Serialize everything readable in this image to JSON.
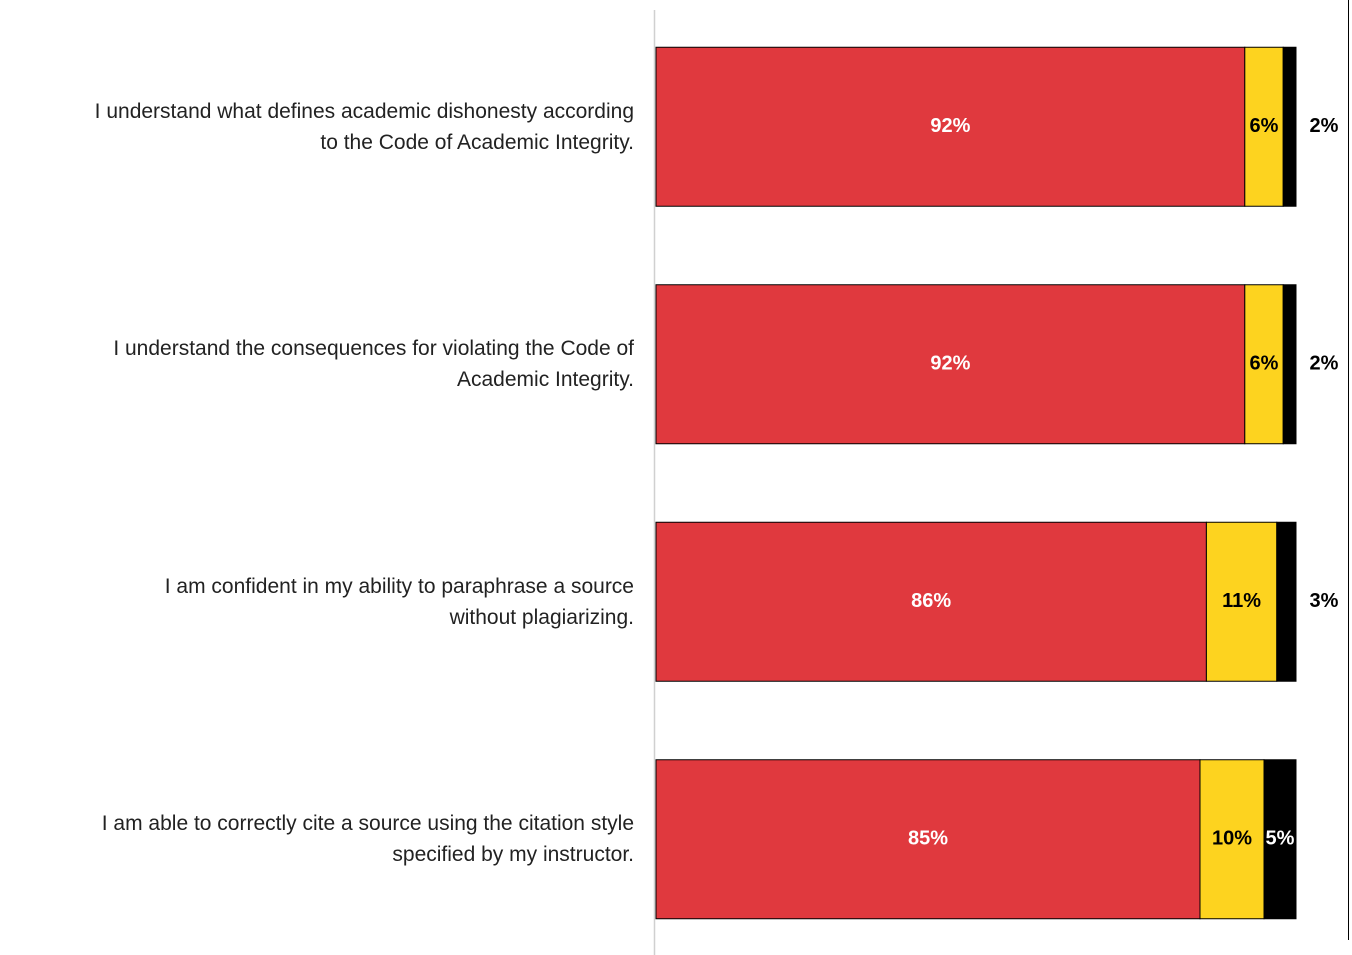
{
  "chart_data": {
    "type": "stacked_barh",
    "categories": [
      "I understand what defines academic dishonesty according\nto the Code of Academic Integrity.",
      "I understand the consequences for violating the Code of\nAcademic Integrity.",
      "I am confident in my ability to paraphrase a source\nwithout plagiarizing.",
      "I am able to correctly cite a source using the citation style\nspecified by my instructor."
    ],
    "series": [
      {
        "color": "#e0393e",
        "values": [
          92,
          92,
          86,
          85
        ],
        "value_labels": [
          "92%",
          "92%",
          "86%",
          "85%"
        ]
      },
      {
        "color": "#fdd31f",
        "values": [
          6,
          6,
          11,
          10
        ],
        "value_labels": [
          "6%",
          "6%",
          "11%",
          "10%"
        ]
      },
      {
        "color": "#000000",
        "values": [
          2,
          2,
          3,
          5
        ],
        "value_labels": [
          "2%",
          "2%",
          "3%",
          "5%"
        ]
      }
    ],
    "xlim": [
      0,
      100
    ]
  }
}
